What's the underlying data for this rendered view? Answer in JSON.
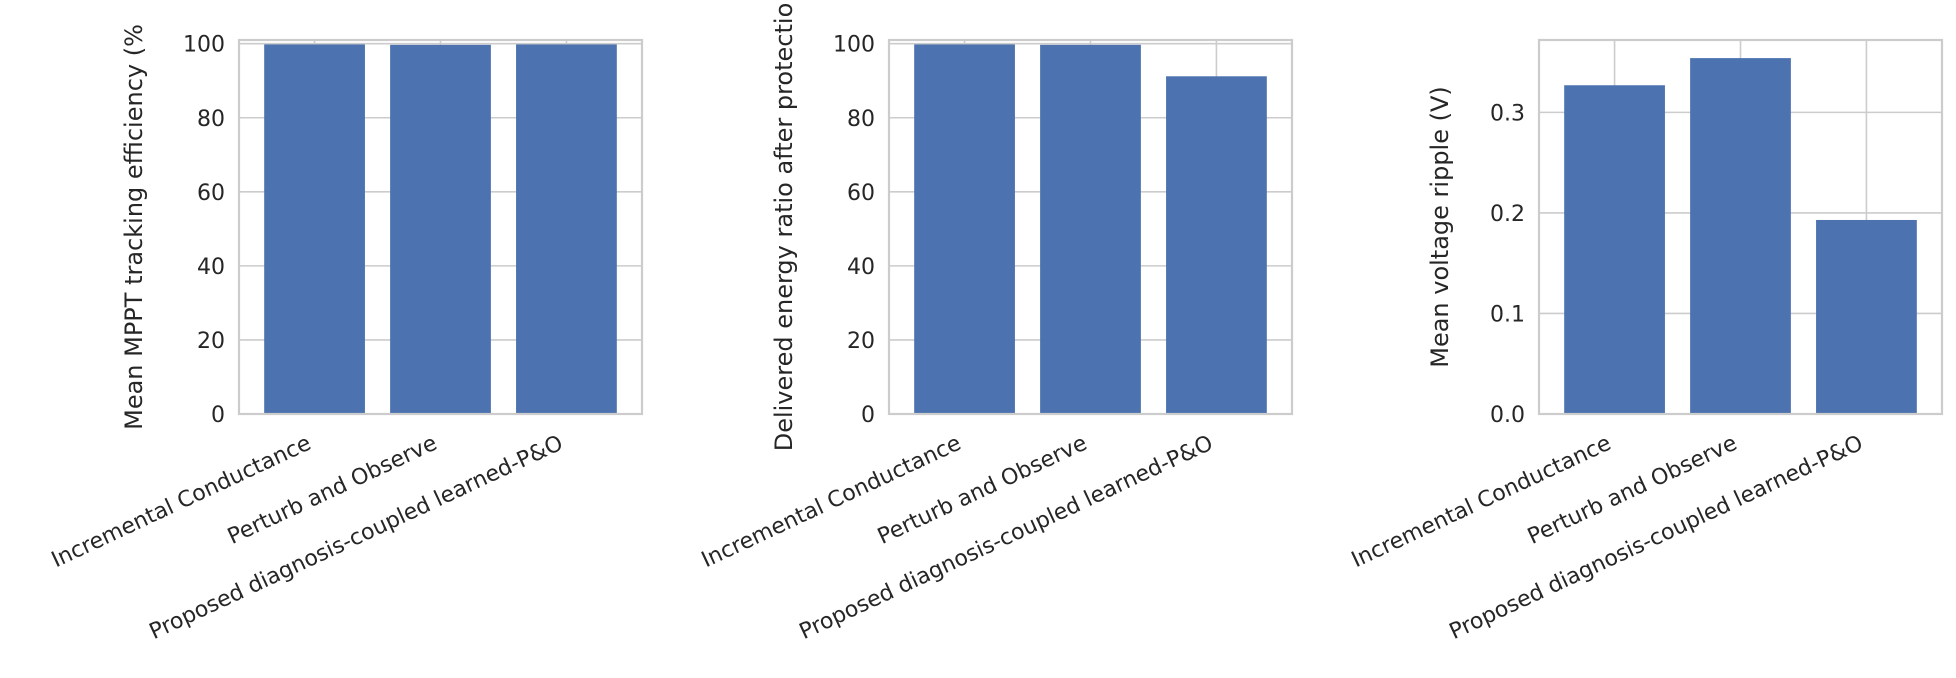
{
  "chart_data": [
    {
      "type": "bar",
      "title": "",
      "xlabel": "",
      "ylabel": "Mean MPPT tracking efficiency (%",
      "categories": [
        "Incremental Conductance",
        "Perturb and Observe",
        "Proposed diagnosis-coupled learned-P&O"
      ],
      "values": [
        99.8,
        99.7,
        99.8
      ],
      "ylim": [
        0,
        101
      ],
      "yticks": [
        0,
        20,
        40,
        60,
        80,
        100
      ],
      "ytick_labels": [
        "0",
        "20",
        "40",
        "60",
        "80",
        "100"
      ],
      "grid": true,
      "bar_color": "#4c72b0"
    },
    {
      "type": "bar",
      "title": "",
      "xlabel": "",
      "ylabel": "Delivered energy ratio after protectio",
      "categories": [
        "Incremental Conductance",
        "Perturb and Observe",
        "Proposed diagnosis-coupled learned-P&O"
      ],
      "values": [
        99.8,
        99.7,
        91.2
      ],
      "ylim": [
        0,
        101
      ],
      "yticks": [
        0,
        20,
        40,
        60,
        80,
        100
      ],
      "ytick_labels": [
        "0",
        "20",
        "40",
        "60",
        "80",
        "100"
      ],
      "grid": true,
      "bar_color": "#4c72b0"
    },
    {
      "type": "bar",
      "title": "",
      "xlabel": "",
      "ylabel": "Mean voltage ripple (V)",
      "categories": [
        "Incremental Conductance",
        "Perturb and Observe",
        "Proposed diagnosis-coupled learned-P&O"
      ],
      "values": [
        0.327,
        0.354,
        0.193
      ],
      "ylim": [
        0,
        0.372
      ],
      "yticks": [
        0,
        0.1,
        0.2,
        0.3
      ],
      "ytick_labels": [
        "0.0",
        "0.1",
        "0.2",
        "0.3"
      ],
      "grid": true,
      "bar_color": "#4c72b0"
    }
  ]
}
